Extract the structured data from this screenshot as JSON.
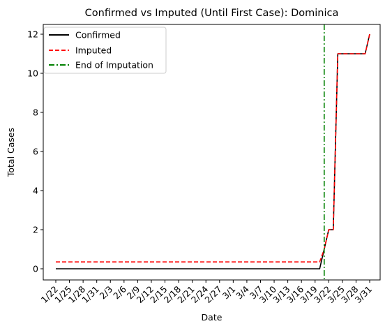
{
  "chart_data": {
    "type": "line",
    "title": "Confirmed vs Imputed (Until First Case): Dominica",
    "xlabel": "Date",
    "ylabel": "Total Cases",
    "ylim": [
      -0.6,
      12.6
    ],
    "yticks": [
      0,
      2,
      4,
      6,
      8,
      10,
      12
    ],
    "x_range_days": [
      0,
      69
    ],
    "xtick_labels": [
      "1/22",
      "1/25",
      "1/28",
      "1/31",
      "2/3",
      "2/6",
      "2/9",
      "2/12",
      "2/15",
      "2/18",
      "2/21",
      "2/24",
      "2/27",
      "3/1",
      "3/4",
      "3/7",
      "3/10",
      "3/13",
      "3/16",
      "3/19",
      "3/22",
      "3/25",
      "3/28",
      "3/31"
    ],
    "xtick_days": [
      0,
      3,
      6,
      9,
      12,
      15,
      18,
      21,
      24,
      27,
      30,
      33,
      36,
      39,
      42,
      45,
      48,
      51,
      54,
      57,
      60,
      63,
      66,
      69
    ],
    "legend": {
      "position": "top-left",
      "entries": [
        "Confirmed",
        "Imputed",
        "End of Imputation"
      ]
    },
    "series": [
      {
        "name": "Confirmed",
        "color": "#000000",
        "style": "solid",
        "x_days": [
          0,
          58,
          59,
          60,
          61,
          62,
          63,
          64,
          65,
          66,
          67,
          68,
          69
        ],
        "values": [
          0,
          0,
          1,
          2,
          2,
          11,
          11,
          11,
          11,
          11,
          11,
          11,
          12
        ]
      },
      {
        "name": "Imputed",
        "color": "#ff0000",
        "style": "dashed",
        "x_days": [
          0,
          58,
          59,
          60,
          61,
          62,
          63,
          64,
          65,
          66,
          67,
          68,
          69
        ],
        "values": [
          0.35,
          0.35,
          1,
          2,
          2,
          11,
          11,
          11,
          11,
          11,
          11,
          11,
          12
        ]
      }
    ],
    "vline": {
      "name": "End of Imputation",
      "x_day": 59,
      "color": "#008000",
      "style": "dashdot"
    }
  }
}
